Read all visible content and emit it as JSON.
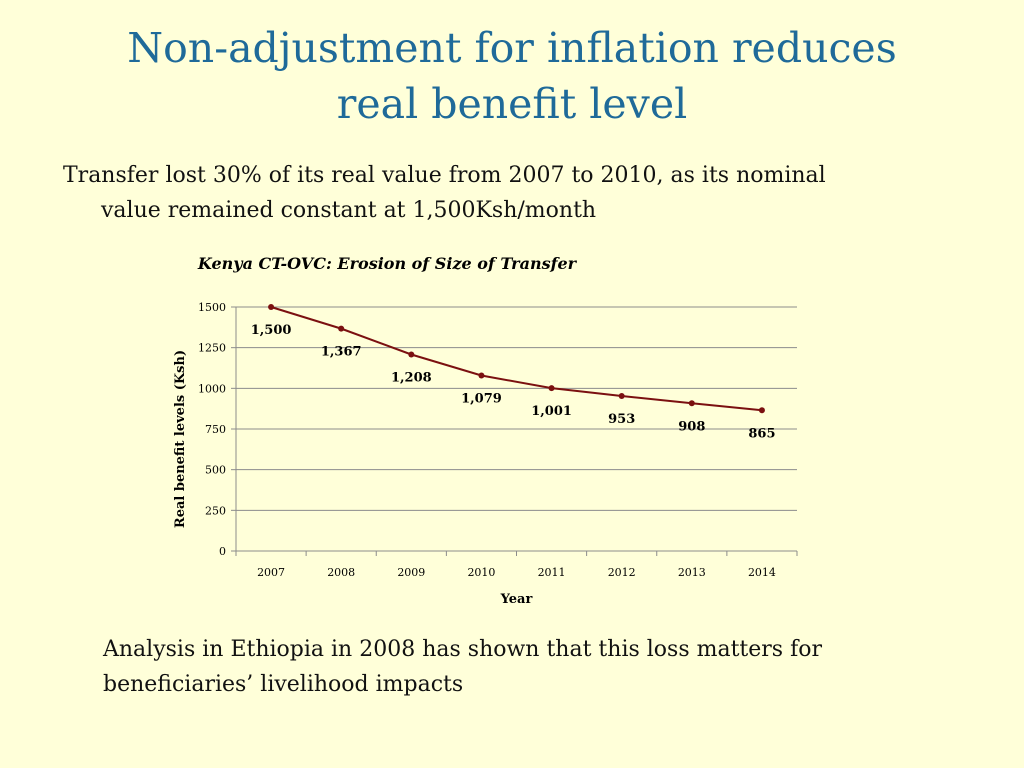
{
  "title": {
    "line1": "Non-adjustment  for inflation reduces",
    "line2": "real benefit level"
  },
  "bullet": {
    "line1": "Transfer lost 30% of its real value from 2007 to 2010, as its nominal",
    "line2": "value remained constant at 1,500Ksh/month"
  },
  "note": {
    "line1": "Analysis in Ethiopia in 2008 has shown that this loss matters for",
    "line2": "beneficiaries’ livelihood impacts"
  },
  "colors": {
    "title": "#1f6a99",
    "series": "#7b1010",
    "background": "#ffffd9"
  },
  "chart_data": {
    "type": "line",
    "title": "Kenya CT-OVC: Erosion of Size of Transfer",
    "xlabel": "Year",
    "ylabel": "Real benefit levels (Ksh)",
    "categories": [
      "2007",
      "2008",
      "2009",
      "2010",
      "2011",
      "2012",
      "2013",
      "2014"
    ],
    "series": [
      {
        "values": [
          1500,
          1367,
          1208,
          1079,
          1001,
          953,
          908,
          865
        ],
        "labels": [
          "1,500",
          "1,367",
          "1,208",
          "1,079",
          "1,001",
          "953",
          "908",
          "865"
        ]
      }
    ],
    "ylim": [
      0,
      1500
    ],
    "yticks": [
      "0",
      "250",
      "500",
      "750",
      "1000",
      "1250",
      "1500"
    ],
    "grid": true,
    "legend": "none"
  }
}
